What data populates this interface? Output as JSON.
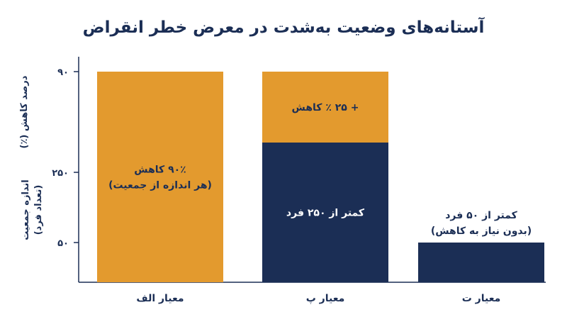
{
  "chart_data": {
    "type": "bar",
    "title": "آستانه‌های وضعیت به‌شدت در معرض خطر انقراض",
    "y_labels": {
      "upper": "درصد کاهش (٪)",
      "lower_main": "اندازه جمعیت",
      "lower_sub": "(تعداد فرد)"
    },
    "y_ticks": [
      "۹۰",
      "۲۵۰",
      "۵۰"
    ],
    "categories": [
      "معیار الف",
      "معیار پ",
      "معیار ت"
    ],
    "bars": [
      {
        "category": "معیار الف",
        "segments": [
          {
            "kind": "decline",
            "color": "#e39a2e",
            "labels": [
              "۹۰٪ کاهش",
              "(هر اندازه از جمعیت)"
            ]
          }
        ]
      },
      {
        "category": "معیار پ",
        "segments": [
          {
            "kind": "population",
            "color": "#1b2e55",
            "labels": [
              "کمتر از ۲۵۰ فرد"
            ]
          },
          {
            "kind": "decline",
            "color": "#e39a2e",
            "labels": [
              "+ ۲۵ ٪ کاهش"
            ]
          }
        ]
      },
      {
        "category": "معیار ت",
        "segments": [
          {
            "kind": "population",
            "color": "#1b2e55",
            "labels": []
          }
        ],
        "above_labels": [
          "کمتر از ۵۰ فرد",
          "(بدون نیاز به کاهش)"
        ]
      }
    ],
    "colors": {
      "navy": "#1b2e55",
      "orange": "#e39a2e",
      "axis": "#1b2e55"
    }
  }
}
